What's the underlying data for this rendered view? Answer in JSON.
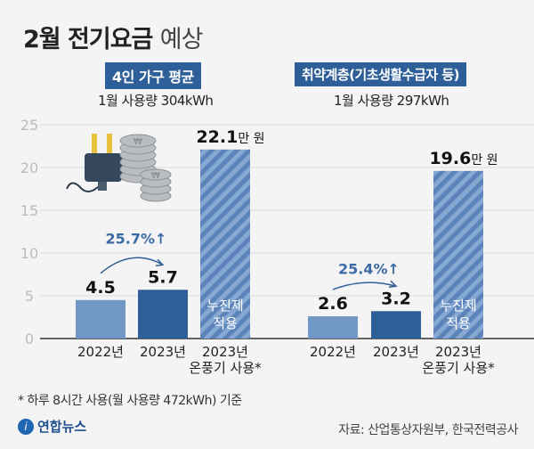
{
  "title": {
    "main": "2월 전기요금",
    "light": "예상"
  },
  "groups": [
    {
      "label": "4인 가구 평균",
      "usage": "1월 사용량 304kWh",
      "increase": "25.7%↑"
    },
    {
      "label": "취약계층(기초생활수급자 등)",
      "usage": "1월 사용량 297kWh",
      "increase": "25.4%↑"
    }
  ],
  "chart_data": {
    "type": "bar",
    "title": "2월 전기요금 예상",
    "unit": "만 원",
    "ylim": [
      0,
      25
    ],
    "yticks": [
      "0",
      "5",
      "10",
      "15",
      "20",
      "25"
    ],
    "categories": [
      "2022년",
      "2023년",
      "2023년 온풍기 사용*"
    ],
    "series": [
      {
        "name": "4인 가구 평균",
        "values": [
          4.5,
          5.7,
          22.1
        ],
        "labels": [
          "4.5",
          "5.7",
          "22.1"
        ]
      },
      {
        "name": "취약계층(기초생활수급자 등)",
        "values": [
          2.6,
          3.2,
          19.6
        ],
        "labels": [
          "2.6",
          "3.2",
          "19.6"
        ]
      }
    ],
    "unit_suffix": "만 원",
    "hatched_note": [
      "누진제",
      "적용"
    ],
    "category_lines": [
      [
        "2022년"
      ],
      [
        "2023년"
      ],
      [
        "2023년",
        "온풍기 사용*"
      ]
    ],
    "colors": {
      "c2022": "#7097c6",
      "c2023": "#2f5f98",
      "hatch_a": "#5b84bb",
      "hatch_b": "#87a8d2"
    }
  },
  "footnote": "* 하루 8시간 사용(월 사용량 472kWh) 기준",
  "logo": "연합뉴스",
  "source": "자료: 산업통상자원부, 한국전력공사"
}
